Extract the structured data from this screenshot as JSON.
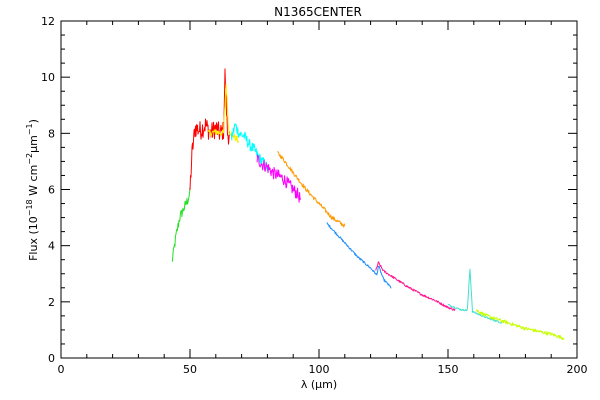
{
  "chart_data": {
    "type": "line",
    "title": "N1365CENTER",
    "xlabel": "λ (μm)",
    "ylabel": {
      "prefix": "Flux (10",
      "exp1": "−18",
      "mid1": " W cm",
      "exp2": "−2",
      "mid2": "μm",
      "exp3": "−1",
      "suffix": ")"
    },
    "xlim": [
      0,
      200
    ],
    "ylim": [
      0,
      12
    ],
    "xticks": [
      0,
      50,
      100,
      150,
      200
    ],
    "yticks": [
      0,
      2,
      4,
      6,
      8,
      10,
      12
    ],
    "x_minor_step": 10,
    "y_minor_step": 0.5,
    "grid": false,
    "series": [
      {
        "color": "#22e022",
        "noise": 0.18,
        "x": [
          43.0,
          44.5,
          46.0,
          47.5,
          49.0,
          50.0
        ],
        "y": [
          3.4,
          4.3,
          5.0,
          5.3,
          5.6,
          5.9
        ]
      },
      {
        "color": "#ff0000",
        "noise": 0.35,
        "x": [
          50.0,
          50.8,
          52.0,
          54.0,
          56.0,
          58.0,
          60.0,
          61.5,
          63.0,
          63.6,
          64.5,
          65.5
        ],
        "y": [
          6.0,
          7.3,
          8.2,
          8.1,
          8.3,
          8.0,
          8.2,
          8.0,
          8.1,
          10.2,
          8.0,
          7.9
        ]
      },
      {
        "color": "#ffee00",
        "noise": 0.12,
        "x": [
          57.0,
          60.0,
          63.0,
          64.0,
          65.0,
          67.0,
          69.0
        ],
        "y": [
          8.0,
          8.05,
          8.0,
          9.8,
          8.1,
          7.9,
          7.7
        ]
      },
      {
        "color": "#00ffff",
        "noise": 0.2,
        "x": [
          66.0,
          67.5,
          69.0,
          71.0,
          73.0,
          75.0,
          77.0,
          79.0,
          81.0
        ],
        "y": [
          7.8,
          8.3,
          8.0,
          7.9,
          7.6,
          7.4,
          7.1,
          6.9,
          6.6
        ]
      },
      {
        "color": "#ff00ff",
        "noise": 0.22,
        "x": [
          76.0,
          78.0,
          80.0,
          82.0,
          84.0,
          86.0,
          88.0,
          90.0,
          92.0,
          93.0
        ],
        "y": [
          7.1,
          6.9,
          6.8,
          6.6,
          6.5,
          6.4,
          6.2,
          6.0,
          5.8,
          5.6
        ]
      },
      {
        "color": "#ff9900",
        "noise": 0.07,
        "x": [
          84.0,
          86.0,
          90.0,
          95.0,
          100.0,
          105.0,
          110.0
        ],
        "y": [
          7.3,
          7.1,
          6.6,
          6.0,
          5.5,
          5.0,
          4.7
        ]
      },
      {
        "color": "#1e8fff",
        "noise": 0.04,
        "x": [
          103.0,
          106.0,
          110.0,
          115.0,
          120.0,
          122.5,
          123.0,
          125.0,
          128.0
        ],
        "y": [
          4.8,
          4.5,
          4.1,
          3.6,
          3.2,
          2.95,
          3.3,
          2.8,
          2.5
        ]
      },
      {
        "color": "#ff1493",
        "noise": 0.04,
        "x": [
          122.0,
          123.0,
          125.0,
          130.0,
          135.0,
          140.0,
          145.0,
          150.0,
          153.0
        ],
        "y": [
          3.1,
          3.4,
          3.1,
          2.8,
          2.5,
          2.25,
          2.05,
          1.8,
          1.7
        ]
      },
      {
        "color": "#40e0d0",
        "noise": 0.03,
        "x": [
          150.0,
          155.0,
          157.5,
          158.5,
          159.5,
          162.0,
          166.0,
          171.0
        ],
        "y": [
          1.9,
          1.72,
          1.7,
          3.2,
          1.65,
          1.55,
          1.4,
          1.25
        ]
      },
      {
        "color": "#c8ff00",
        "noise": 0.06,
        "x": [
          161.0,
          165.0,
          170.0,
          175.0,
          180.0,
          185.0,
          190.0,
          195.0
        ],
        "y": [
          1.7,
          1.5,
          1.35,
          1.2,
          1.05,
          0.95,
          0.85,
          0.7
        ]
      }
    ]
  }
}
